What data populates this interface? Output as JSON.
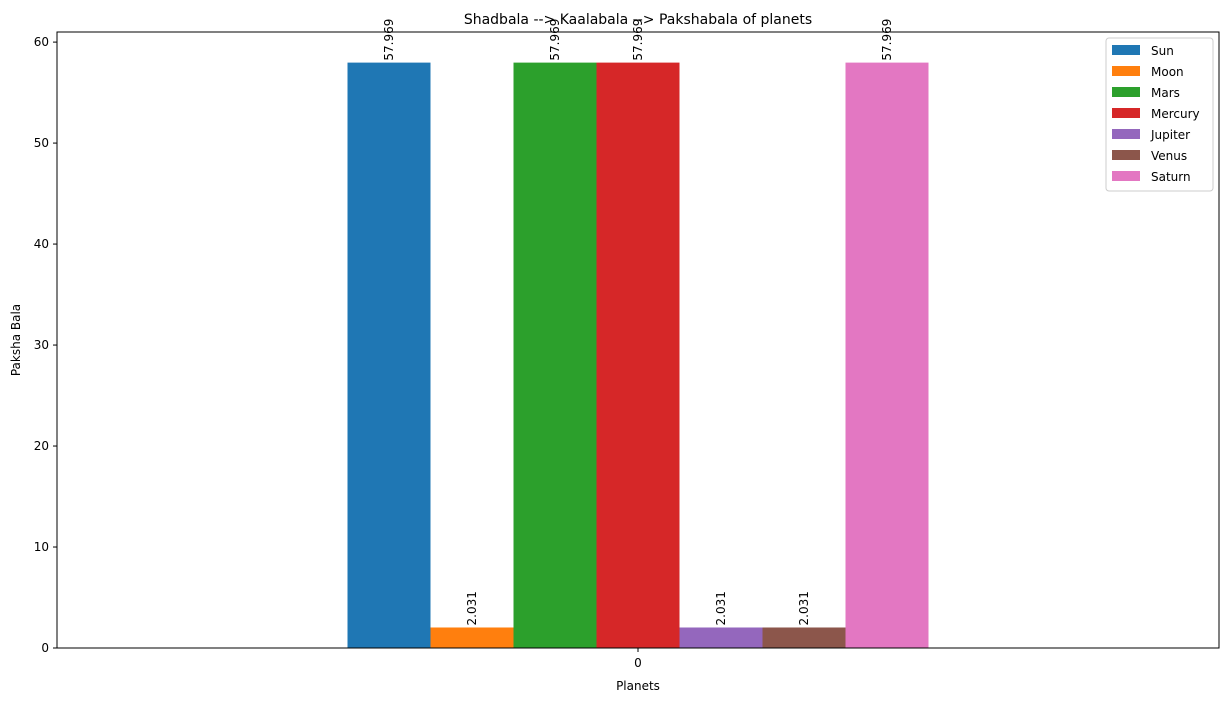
{
  "chart_data": {
    "type": "bar",
    "title": "Shadbala --> Kaalabala --> Pakshabala of planets",
    "xlabel": "Planets",
    "ylabel": "Paksha Bala",
    "categories": [
      "0"
    ],
    "ylim": [
      0,
      61
    ],
    "yticks": [
      0,
      10,
      20,
      30,
      40,
      50,
      60
    ],
    "grid": false,
    "legend_position": "top-right",
    "series": [
      {
        "name": "Sun",
        "values": [
          57.969
        ],
        "label": "57.969",
        "color": "#1f77b4"
      },
      {
        "name": "Moon",
        "values": [
          2.031
        ],
        "label": "2.031",
        "color": "#ff7f0e"
      },
      {
        "name": "Mars",
        "values": [
          57.969
        ],
        "label": "57.969",
        "color": "#2ca02c"
      },
      {
        "name": "Mercury",
        "values": [
          57.969
        ],
        "label": "57.969",
        "color": "#d62728"
      },
      {
        "name": "Jupiter",
        "values": [
          2.031
        ],
        "label": "2.031",
        "color": "#9467bd"
      },
      {
        "name": "Venus",
        "values": [
          2.031
        ],
        "label": "2.031",
        "color": "#8c564b"
      },
      {
        "name": "Saturn",
        "values": [
          57.969
        ],
        "label": "57.969",
        "color": "#e377c2"
      }
    ]
  }
}
